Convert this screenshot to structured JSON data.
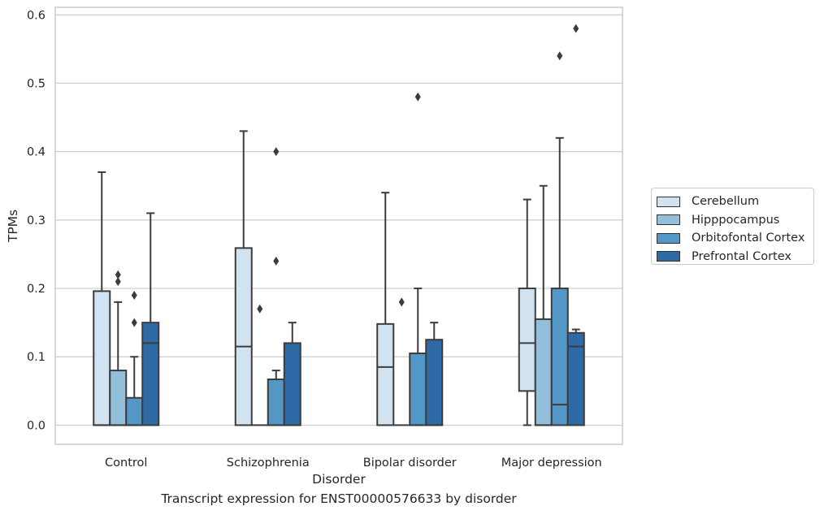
{
  "chart_data": {
    "type": "boxplot",
    "xlabel": "Disorder",
    "ylabel": "TPMs",
    "caption": "Transcript expression for ENST00000576633 by disorder",
    "ylim": [
      -0.028,
      0.611
    ],
    "yticks": [
      "0.0",
      "0.1",
      "0.2",
      "0.3",
      "0.4",
      "0.5",
      "0.6"
    ],
    "grid": "horizontal",
    "legend_position": "right",
    "categories": [
      "Control",
      "Schizophrenia",
      "Bipolar disorder",
      "Major depression"
    ],
    "series": [
      {
        "name": "Cerebellum",
        "color": "#d1e2f1",
        "boxes": [
          {
            "q1": 0.0,
            "median": 0.0,
            "q3": 0.196,
            "whisker_low": 0.0,
            "whisker_high": 0.37,
            "outliers": []
          },
          {
            "q1": 0.0,
            "median": 0.115,
            "q3": 0.259,
            "whisker_low": 0.0,
            "whisker_high": 0.43,
            "outliers": []
          },
          {
            "q1": 0.0,
            "median": 0.085,
            "q3": 0.148,
            "whisker_low": 0.0,
            "whisker_high": 0.34,
            "outliers": []
          },
          {
            "q1": 0.05,
            "median": 0.12,
            "q3": 0.2,
            "whisker_low": 0.0,
            "whisker_high": 0.33,
            "outliers": []
          }
        ]
      },
      {
        "name": "Hipppocampus",
        "color": "#93bfdb",
        "boxes": [
          {
            "q1": 0.0,
            "median": 0.0,
            "q3": 0.08,
            "whisker_low": 0.0,
            "whisker_high": 0.18,
            "outliers": [
              0.21,
              0.22
            ]
          },
          {
            "q1": 0.0,
            "median": 0.0,
            "q3": 0.0,
            "whisker_low": 0.0,
            "whisker_high": 0.0,
            "outliers": [
              0.17
            ]
          },
          {
            "q1": 0.0,
            "median": 0.0,
            "q3": 0.0,
            "whisker_low": 0.0,
            "whisker_high": 0.0,
            "outliers": [
              0.18
            ]
          },
          {
            "q1": 0.0,
            "median": 0.0,
            "q3": 0.155,
            "whisker_low": 0.0,
            "whisker_high": 0.35,
            "outliers": []
          }
        ]
      },
      {
        "name": "Orbitofontal Cortex",
        "color": "#5397c6",
        "boxes": [
          {
            "q1": 0.0,
            "median": 0.0,
            "q3": 0.04,
            "whisker_low": 0.0,
            "whisker_high": 0.1,
            "outliers": [
              0.15,
              0.19
            ]
          },
          {
            "q1": 0.0,
            "median": 0.0,
            "q3": 0.067,
            "whisker_low": 0.0,
            "whisker_high": 0.08,
            "outliers": [
              0.24,
              0.4
            ]
          },
          {
            "q1": 0.0,
            "median": 0.0,
            "q3": 0.105,
            "whisker_low": 0.0,
            "whisker_high": 0.2,
            "outliers": [
              0.48
            ]
          },
          {
            "q1": 0.0,
            "median": 0.03,
            "q3": 0.2,
            "whisker_low": 0.0,
            "whisker_high": 0.42,
            "outliers": [
              0.54
            ]
          }
        ]
      },
      {
        "name": "Prefrontal Cortex",
        "color": "#2d6aa6",
        "boxes": [
          {
            "q1": 0.0,
            "median": 0.12,
            "q3": 0.15,
            "whisker_low": 0.0,
            "whisker_high": 0.31,
            "outliers": []
          },
          {
            "q1": 0.0,
            "median": 0.0,
            "q3": 0.12,
            "whisker_low": 0.0,
            "whisker_high": 0.15,
            "outliers": []
          },
          {
            "q1": 0.0,
            "median": 0.0,
            "q3": 0.125,
            "whisker_low": 0.0,
            "whisker_high": 0.15,
            "outliers": []
          },
          {
            "q1": 0.0,
            "median": 0.115,
            "q3": 0.135,
            "whisker_low": 0.0,
            "whisker_high": 0.14,
            "outliers": [
              0.58
            ]
          }
        ]
      }
    ]
  }
}
